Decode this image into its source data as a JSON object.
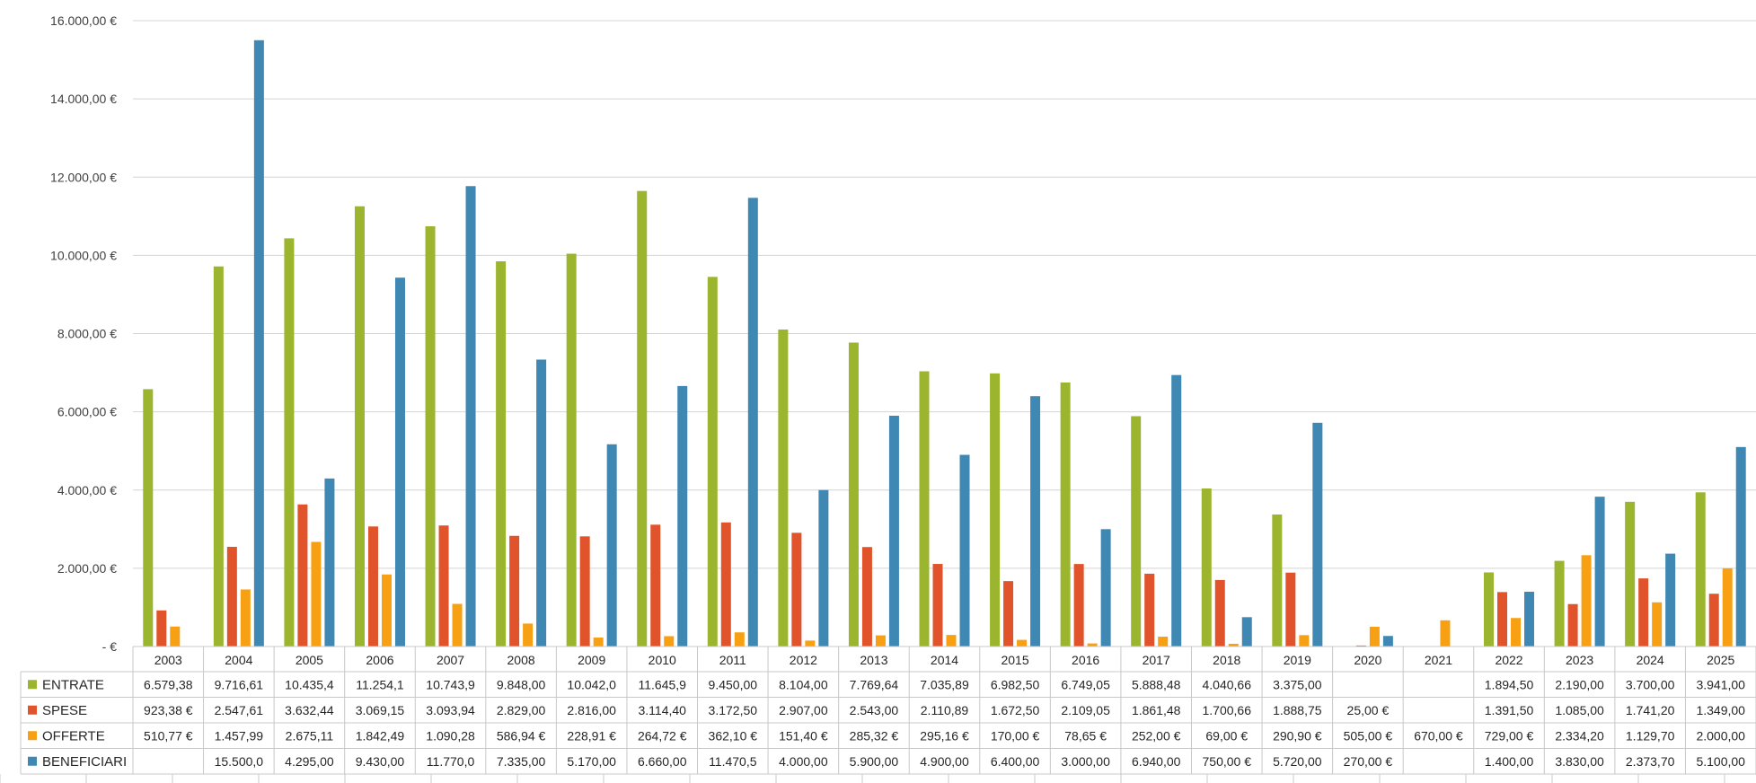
{
  "chart_data": {
    "type": "bar",
    "categories": [
      "2003",
      "2004",
      "2005",
      "2006",
      "2007",
      "2008",
      "2009",
      "2010",
      "2011",
      "2012",
      "2013",
      "2014",
      "2015",
      "2016",
      "2017",
      "2018",
      "2019",
      "2020",
      "2021",
      "2022",
      "2023",
      "2024",
      "2025"
    ],
    "ylim": [
      0,
      16000
    ],
    "yticks": [
      {
        "value": 0,
        "label": "-   €"
      },
      {
        "value": 2000,
        "label": "2.000,00 €"
      },
      {
        "value": 4000,
        "label": "4.000,00 €"
      },
      {
        "value": 6000,
        "label": "6.000,00 €"
      },
      {
        "value": 8000,
        "label": "8.000,00 €"
      },
      {
        "value": 10000,
        "label": "10.000,00 €"
      },
      {
        "value": 12000,
        "label": "12.000,00 €"
      },
      {
        "value": 14000,
        "label": "14.000,00 €"
      },
      {
        "value": 16000,
        "label": "16.000,00 €"
      }
    ],
    "grid": true,
    "legend": "data-table",
    "series": [
      {
        "name": "ENTRATE",
        "color": "#9bb52e",
        "values": [
          6579.38,
          9716.61,
          10435.4,
          11254.1,
          10743.9,
          9848.0,
          10042.0,
          11645.9,
          9450.0,
          8104.0,
          7769.64,
          7035.89,
          6982.5,
          6749.05,
          5888.48,
          4040.66,
          3375.0,
          null,
          null,
          1894.5,
          2190.0,
          3700.0,
          3941.0
        ],
        "labels": [
          "6.579,38",
          "9.716,61",
          "10.435,4",
          "11.254,1",
          "10.743,9",
          "9.848,00",
          "10.042,0",
          "11.645,9",
          "9.450,00",
          "8.104,00",
          "7.769,64",
          "7.035,89",
          "6.982,50",
          "6.749,05",
          "5.888,48",
          "4.040,66",
          "3.375,00",
          "",
          "",
          "1.894,50",
          "2.190,00",
          "3.700,00",
          "3.941,00"
        ]
      },
      {
        "name": "SPESE",
        "color": "#e0532b",
        "values": [
          923.38,
          2547.61,
          3632.44,
          3069.15,
          3093.94,
          2829.0,
          2816.0,
          3114.4,
          3172.5,
          2907.0,
          2543.0,
          2110.89,
          1672.5,
          2109.05,
          1861.48,
          1700.66,
          1888.75,
          25.0,
          null,
          1391.5,
          1085.0,
          1741.2,
          1349.0
        ],
        "labels": [
          "923,38 €",
          "2.547,61",
          "3.632,44",
          "3.069,15",
          "3.093,94",
          "2.829,00",
          "2.816,00",
          "3.114,40",
          "3.172,50",
          "2.907,00",
          "2.543,00",
          "2.110,89",
          "1.672,50",
          "2.109,05",
          "1.861,48",
          "1.700,66",
          "1.888,75",
          "25,00 €",
          "",
          "1.391,50",
          "1.085,00",
          "1.741,20",
          "1.349,00"
        ]
      },
      {
        "name": "OFFERTE",
        "color": "#f7a014",
        "values": [
          510.77,
          1457.99,
          2675.11,
          1842.49,
          1090.28,
          586.94,
          228.91,
          264.72,
          362.1,
          151.4,
          285.32,
          295.16,
          170.0,
          78.65,
          252.0,
          69.0,
          290.9,
          505.0,
          670.0,
          729.0,
          2334.2,
          1129.7,
          2000.0
        ],
        "labels": [
          "510,77 €",
          "1.457,99",
          "2.675,11",
          "1.842,49",
          "1.090,28",
          "586,94 €",
          "228,91 €",
          "264,72 €",
          "362,10 €",
          "151,40 €",
          "285,32 €",
          "295,16 €",
          "170,00 €",
          "78,65 €",
          "252,00 €",
          "69,00 €",
          "290,90 €",
          "505,00 €",
          "670,00 €",
          "729,00 €",
          "2.334,20",
          "1.129,70",
          "2.000,00"
        ]
      },
      {
        "name": "BENEFICIARI",
        "color": "#3f88b3",
        "values": [
          null,
          15500.0,
          4295.0,
          9430.0,
          11770.0,
          7335.0,
          5170.0,
          6660.0,
          11470.5,
          4000.0,
          5900.0,
          4900.0,
          6400.0,
          3000.0,
          6940.0,
          750.0,
          5720.0,
          270.0,
          null,
          1400.0,
          3830.0,
          2373.7,
          5100.0
        ],
        "labels": [
          "",
          "15.500,0",
          "4.295,00",
          "9.430,00",
          "11.770,0",
          "7.335,00",
          "5.170,00",
          "6.660,00",
          "11.470,5",
          "4.000,00",
          "5.900,00",
          "4.900,00",
          "6.400,00",
          "3.000,00",
          "6.940,00",
          "750,00 €",
          "5.720,00",
          "270,00 €",
          "",
          "1.400,00",
          "3.830,00",
          "2.373,70",
          "5.100,00"
        ]
      }
    ]
  }
}
